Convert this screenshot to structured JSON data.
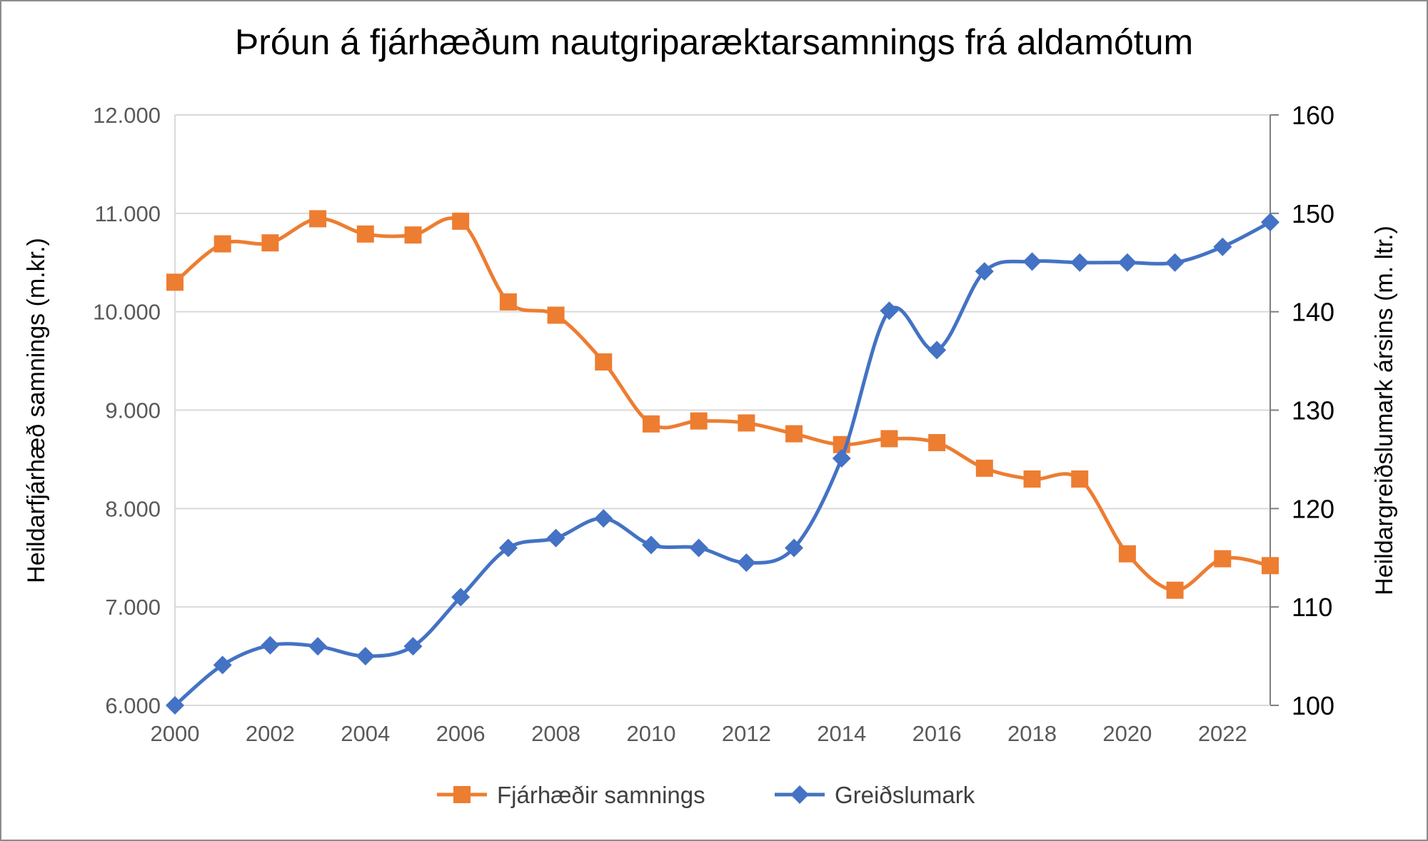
{
  "chart_data": {
    "type": "line",
    "title": "Þróun á fjárhæðum nautgriparæktarsamnings frá aldamótum",
    "xlabel": "",
    "x": [
      2000,
      2001,
      2002,
      2003,
      2004,
      2005,
      2006,
      2007,
      2008,
      2009,
      2010,
      2011,
      2012,
      2013,
      2014,
      2015,
      2016,
      2017,
      2018,
      2019,
      2020,
      2021,
      2022,
      2023
    ],
    "x_ticks": [
      "2000",
      "2002",
      "2004",
      "2006",
      "2008",
      "2010",
      "2012",
      "2014",
      "2016",
      "2018",
      "2020",
      "2022"
    ],
    "y_left": {
      "label": "Heildarfjárhæð samnings (m.kr.)",
      "range": [
        6000,
        12000
      ],
      "ticks": [
        "6.000",
        "7.000",
        "8.000",
        "9.000",
        "10.000",
        "11.000",
        "12.000"
      ]
    },
    "y_right": {
      "label": "Heildargreiðslumark ársins (m. ltr.)",
      "range": [
        100,
        160
      ],
      "ticks": [
        "100",
        "110",
        "120",
        "130",
        "140",
        "150",
        "160"
      ]
    },
    "grid": true,
    "legend_position": "bottom",
    "series": [
      {
        "name": "Fjárhæðir samnings",
        "axis": "left",
        "marker": "square",
        "color": "#ED7D31",
        "values": [
          10300,
          10690,
          10700,
          10945,
          10790,
          10780,
          10920,
          10100,
          9965,
          9490,
          8860,
          8890,
          8870,
          8760,
          8650,
          8710,
          8670,
          8410,
          8300,
          8300,
          7540,
          7170,
          7490,
          7420
        ]
      },
      {
        "name": "Greiðslumark",
        "axis": "right",
        "marker": "diamond",
        "color": "#4472C4",
        "values": [
          100,
          104.1,
          106.1,
          106,
          105,
          106,
          111,
          116,
          117,
          119,
          116.3,
          116,
          114.5,
          116,
          125.1,
          140.1,
          136.1,
          144.1,
          145.1,
          145,
          145,
          145,
          146.6,
          149.1
        ]
      }
    ]
  }
}
